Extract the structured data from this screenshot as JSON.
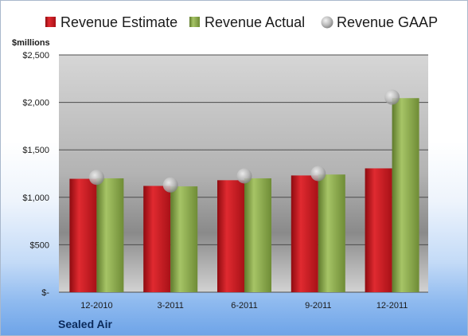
{
  "chart_data": {
    "type": "bar",
    "categories": [
      "12-2010",
      "3-2011",
      "6-2011",
      "9-2011",
      "12-2011"
    ],
    "series": [
      {
        "name": "Revenue Estimate",
        "values": [
          1195,
          1120,
          1180,
          1230,
          1305
        ],
        "color": "#c8161d",
        "marker": "bar"
      },
      {
        "name": "Revenue Actual",
        "values": [
          1200,
          1115,
          1200,
          1240,
          2045
        ],
        "color": "#8aa848",
        "marker": "bar"
      },
      {
        "name": "Revenue GAAP",
        "values": [
          1210,
          1130,
          1225,
          1250,
          2055
        ],
        "color": "#b0b0b0",
        "marker": "circle"
      }
    ],
    "ylabel": "$millions",
    "yticks": [
      "$-",
      "$500",
      "$1,000",
      "$1,500",
      "$2,000",
      "$2,500"
    ],
    "ylim": [
      0,
      2500
    ],
    "ytick_step": 500,
    "grid": true,
    "legend_position": "top",
    "company": "Sealed Air"
  }
}
